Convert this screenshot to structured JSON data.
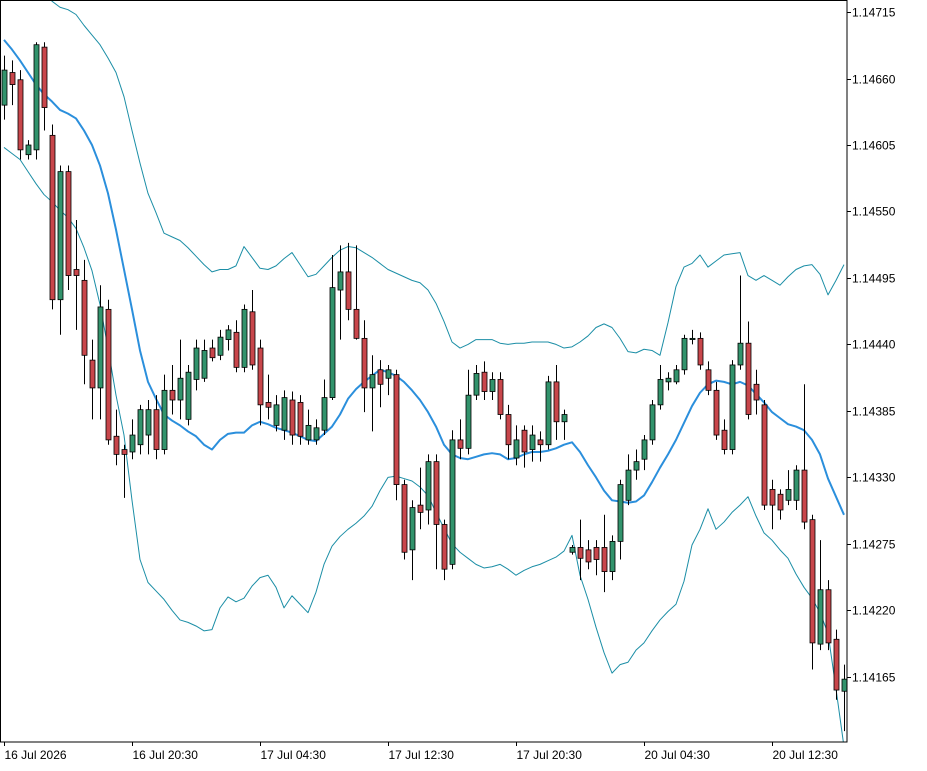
{
  "chart_data": {
    "type": "candlestick",
    "categories": [
      "16 Jul 2026",
      null,
      null,
      null,
      null,
      null,
      null,
      null,
      null,
      null,
      null,
      null,
      null,
      null,
      null,
      null,
      "16 Jul 20:30",
      null,
      null,
      null,
      null,
      null,
      null,
      null,
      null,
      null,
      null,
      null,
      null,
      null,
      null,
      null,
      "17 Jul 04:30",
      null,
      null,
      null,
      null,
      null,
      null,
      null,
      null,
      null,
      null,
      null,
      null,
      null,
      null,
      null,
      "17 Jul 12:30",
      null,
      null,
      null,
      null,
      null,
      null,
      null,
      null,
      null,
      null,
      null,
      null,
      null,
      null,
      null,
      "17 Jul 20:30",
      null,
      null,
      null,
      null,
      null,
      null,
      null,
      null,
      null,
      null,
      null,
      null,
      null,
      null,
      null,
      "20 Jul 04:30",
      null,
      null,
      null,
      null,
      null,
      null,
      null,
      null,
      null,
      null,
      null,
      null,
      null,
      null,
      null,
      "20 Jul 12:30",
      null,
      null,
      null,
      null,
      null,
      null,
      null,
      null,
      null
    ],
    "open": [
      1.14638,
      1.14665,
      1.14659,
      1.14597,
      1.14601,
      1.14686,
      1.14613,
      1.14477,
      1.14583,
      1.14502,
      1.14493,
      1.14427,
      1.14404,
      1.14469,
      1.14364,
      1.14353,
      1.14351,
      1.14357,
      1.14365,
      1.14386,
      1.14353,
      1.14402,
      1.14394,
      1.14378,
      1.14411,
      1.14412,
      1.14437,
      1.14431,
      1.14444,
      1.1445,
      1.14421,
      1.14467,
      1.14437,
      1.14392,
      1.14373,
      1.14369,
      1.14394,
      1.14392,
      1.14361,
      1.14361,
      1.14369,
      1.14396,
      1.14485,
      1.145,
      1.14469,
      1.14445,
      1.14404,
      1.14419,
      1.14412,
      1.14415,
      1.14324,
      1.1427,
      1.14307,
      1.14303,
      1.14343,
      1.14291,
      1.14258,
      1.14361,
      1.14354,
      1.14398,
      1.14417,
      1.14401,
      1.14411,
      1.14382,
      1.14346,
      1.14369,
      1.14353,
      1.14361,
      1.14357,
      1.14409,
      1.14376,
      1.14268,
      1.14272,
      1.1427,
      1.14272,
      1.14272,
      1.14252,
      1.14277,
      1.14311,
      1.14336,
      1.14345,
      1.14361,
      1.1439,
      1.14409,
      1.14409,
      1.14419,
      1.14444,
      1.14445,
      1.14419,
      1.14402,
      1.14369,
      1.14353,
      1.14423,
      1.14441,
      1.14407,
      1.1439,
      1.1432,
      1.14316,
      1.14311,
      1.14311,
      1.14336,
      1.14295,
      1.14192,
      1.14237,
      1.14196,
      1.14153
    ],
    "high": [
      1.14679,
      1.14675,
      1.14667,
      1.14609,
      1.1469,
      1.1469,
      1.14622,
      1.14588,
      1.14588,
      1.14543,
      1.1451,
      1.14444,
      1.14489,
      1.14477,
      1.14386,
      1.14357,
      1.14378,
      1.1439,
      1.14394,
      1.14398,
      1.14415,
      1.14423,
      1.14444,
      1.14423,
      1.14444,
      1.14444,
      1.14444,
      1.14452,
      1.14456,
      1.1446,
      1.14473,
      1.14485,
      1.14444,
      1.14415,
      1.14398,
      1.14402,
      1.14401,
      1.14398,
      1.14386,
      1.14378,
      1.14411,
      1.14514,
      1.14522,
      1.14524,
      1.14522,
      1.1446,
      1.14431,
      1.14427,
      1.14423,
      1.14419,
      1.14328,
      1.14311,
      1.14338,
      1.14349,
      1.14349,
      1.14295,
      1.14369,
      1.14378,
      1.14419,
      1.14423,
      1.14426,
      1.14417,
      1.14417,
      1.1439,
      1.14373,
      1.14373,
      1.14373,
      1.14368,
      1.14414,
      1.14423,
      1.14386,
      1.14274,
      1.14295,
      1.14278,
      1.14278,
      1.14299,
      1.14282,
      1.14328,
      1.14349,
      1.14353,
      1.14365,
      1.14394,
      1.14423,
      1.14417,
      1.14423,
      1.14448,
      1.14452,
      1.1445,
      1.14426,
      1.14409,
      1.14378,
      1.14427,
      1.14497,
      1.14459,
      1.14419,
      1.14394,
      1.14328,
      1.1432,
      1.14336,
      1.1434,
      1.14407,
      1.14299,
      1.14278,
      1.14245,
      1.14204,
      1.14175
    ],
    "low": [
      1.14626,
      1.14638,
      1.14593,
      1.14593,
      1.14593,
      1.14617,
      1.14469,
      1.14448,
      1.14485,
      1.14452,
      1.14407,
      1.14378,
      1.14378,
      1.14357,
      1.1434,
      1.14313,
      1.14345,
      1.14349,
      1.14349,
      1.14345,
      1.14349,
      1.14382,
      1.14378,
      1.14373,
      1.14402,
      1.14409,
      1.14426,
      1.14427,
      1.14435,
      1.14417,
      1.14417,
      1.14419,
      1.14373,
      1.14378,
      1.14368,
      1.14361,
      1.14357,
      1.14357,
      1.14357,
      1.14357,
      1.14365,
      1.14394,
      1.14444,
      1.1446,
      1.14444,
      1.14384,
      1.14368,
      1.14388,
      1.14398,
      1.14311,
      1.14262,
      1.14245,
      1.14287,
      1.14291,
      1.14254,
      1.14245,
      1.14254,
      1.14345,
      1.14349,
      1.14394,
      1.14394,
      1.14394,
      1.14378,
      1.14345,
      1.1434,
      1.14338,
      1.14343,
      1.14343,
      1.14353,
      1.14361,
      1.14361,
      1.14266,
      1.14245,
      1.14254,
      1.14249,
      1.14235,
      1.14245,
      1.14262,
      1.14307,
      1.14328,
      1.14336,
      1.14357,
      1.14386,
      1.14402,
      1.14407,
      1.14415,
      1.1444,
      1.14419,
      1.14398,
      1.14361,
      1.14349,
      1.14349,
      1.14419,
      1.14378,
      1.14382,
      1.14303,
      1.14287,
      1.14295,
      1.14307,
      1.14303,
      1.14287,
      1.14171,
      1.14187,
      1.14187,
      1.14146,
      1.1412
    ],
    "close": [
      1.14667,
      1.14655,
      1.14601,
      1.14605,
      1.14688,
      1.14636,
      1.14477,
      1.14583,
      1.14497,
      1.14497,
      1.14431,
      1.14404,
      1.14471,
      1.14361,
      1.14349,
      1.14349,
      1.14365,
      1.14386,
      1.14386,
      1.14353,
      1.14402,
      1.14394,
      1.14412,
      1.14417,
      1.14437,
      1.14435,
      1.14429,
      1.14446,
      1.14452,
      1.14421,
      1.14469,
      1.14423,
      1.1439,
      1.14388,
      1.1439,
      1.14396,
      1.14365,
      1.14364,
      1.14373,
      1.14371,
      1.14396,
      1.14487,
      1.145,
      1.14469,
      1.14445,
      1.14404,
      1.14415,
      1.14407,
      1.14419,
      1.14324,
      1.14268,
      1.14305,
      1.14301,
      1.14343,
      1.14291,
      1.14254,
      1.14361,
      1.14354,
      1.14398,
      1.14416,
      1.14401,
      1.14411,
      1.14382,
      1.14357,
      1.14361,
      1.14351,
      1.14365,
      1.14357,
      1.14409,
      1.14376,
      1.14382,
      1.14272,
      1.14263,
      1.1426,
      1.14262,
      1.14252,
      1.14277,
      1.14324,
      1.14336,
      1.14343,
      1.14361,
      1.1439,
      1.14411,
      1.14412,
      1.14419,
      1.14445,
      1.14445,
      1.14423,
      1.14402,
      1.14365,
      1.14353,
      1.14423,
      1.14441,
      1.14382,
      1.14394,
      1.14307,
      1.14307,
      1.14303,
      1.1432,
      1.14336,
      1.14293,
      1.14193,
      1.14237,
      1.14193,
      1.14154,
      1.14163
    ],
    "up_color": "#32936c",
    "down_color": "#c8464b",
    "bands": [
      {
        "color": "#1b8ea6",
        "values": [
          1.1477,
          1.14766,
          1.14758,
          1.14749,
          1.14746,
          1.14733,
          1.14724,
          1.14719,
          1.14717,
          1.14713,
          1.14704,
          1.14696,
          1.14688,
          1.14677,
          1.14665,
          1.14645,
          1.14617,
          1.1459,
          1.14565,
          1.14549,
          1.14532,
          1.14529,
          1.14526,
          1.1452,
          1.14513,
          1.14506,
          1.145,
          1.14502,
          1.14502,
          1.14505,
          1.14521,
          1.14512,
          1.14503,
          1.14502,
          1.14505,
          1.14511,
          1.14516,
          1.14506,
          1.14496,
          1.14498,
          1.14505,
          1.14512,
          1.14518,
          1.14521,
          1.1452,
          1.14516,
          1.14512,
          1.14507,
          1.14502,
          1.14499,
          1.14496,
          1.14493,
          1.14491,
          1.14485,
          1.14474,
          1.14459,
          1.14442,
          1.14437,
          1.1444,
          1.14444,
          1.14444,
          1.14444,
          1.14441,
          1.1444,
          1.14441,
          1.14441,
          1.14442,
          1.14442,
          1.14442,
          1.1444,
          1.14437,
          1.14438,
          1.14442,
          1.14447,
          1.14454,
          1.14457,
          1.14454,
          1.14445,
          1.14434,
          1.14433,
          1.14436,
          1.14435,
          1.14431,
          1.14458,
          1.14488,
          1.14504,
          1.14507,
          1.14514,
          1.14504,
          1.14509,
          1.14514,
          1.14515,
          1.14516,
          1.14497,
          1.14493,
          1.14497,
          1.14493,
          1.14489,
          1.14496,
          1.14502,
          1.14505,
          1.14506,
          1.14498,
          1.14481,
          1.14493,
          1.14506
        ]
      },
      {
        "color": "#2b8fdc",
        "values": [
          1.14692,
          1.14684,
          1.14675,
          1.14665,
          1.14655,
          1.14647,
          1.14641,
          1.14634,
          1.14631,
          1.14627,
          1.14617,
          1.14605,
          1.14588,
          1.14565,
          1.14535,
          1.14502,
          1.14469,
          1.14435,
          1.14409,
          1.14395,
          1.14382,
          1.14377,
          1.14373,
          1.14368,
          1.14364,
          1.14357,
          1.14353,
          1.14361,
          1.14366,
          1.14367,
          1.14367,
          1.14373,
          1.14376,
          1.14374,
          1.14371,
          1.14369,
          1.14367,
          1.14364,
          1.14361,
          1.1436,
          1.14366,
          1.14372,
          1.14382,
          1.14395,
          1.14403,
          1.14409,
          1.14414,
          1.14419,
          1.14417,
          1.14414,
          1.14409,
          1.14402,
          1.14394,
          1.14384,
          1.14372,
          1.14357,
          1.14349,
          1.14346,
          1.14345,
          1.14347,
          1.14349,
          1.1435,
          1.14349,
          1.14345,
          1.14346,
          1.14349,
          1.14351,
          1.14351,
          1.14352,
          1.14354,
          1.14357,
          1.14359,
          1.14351,
          1.1434,
          1.1433,
          1.14319,
          1.14311,
          1.1431,
          1.14309,
          1.1431,
          1.14315,
          1.14326,
          1.14338,
          1.14349,
          1.14361,
          1.14375,
          1.14389,
          1.144,
          1.14407,
          1.1441,
          1.14409,
          1.14407,
          1.14409,
          1.14406,
          1.14399,
          1.14392,
          1.14384,
          1.14379,
          1.14374,
          1.14372,
          1.14369,
          1.14361,
          1.14349,
          1.14329,
          1.14314,
          1.14299
        ]
      },
      {
        "color": "#1b8ea6",
        "values": [
          1.14603,
          1.14598,
          1.14593,
          1.14583,
          1.14573,
          1.14564,
          1.14558,
          1.14551,
          1.14545,
          1.14536,
          1.1452,
          1.14501,
          1.14473,
          1.14437,
          1.14398,
          1.14365,
          1.14311,
          1.14262,
          1.14243,
          1.14236,
          1.14229,
          1.1422,
          1.14212,
          1.1421,
          1.14207,
          1.14203,
          1.14204,
          1.14222,
          1.14231,
          1.14227,
          1.1423,
          1.1424,
          1.14247,
          1.14249,
          1.14239,
          1.14222,
          1.14232,
          1.14225,
          1.14218,
          1.14235,
          1.14258,
          1.14273,
          1.14281,
          1.14287,
          1.14292,
          1.14298,
          1.14306,
          1.14319,
          1.1433,
          1.14331,
          1.14329,
          1.14327,
          1.14322,
          1.14315,
          1.14301,
          1.14288,
          1.14275,
          1.14268,
          1.14263,
          1.14258,
          1.14255,
          1.14256,
          1.14258,
          1.14254,
          1.14249,
          1.14253,
          1.14256,
          1.14258,
          1.14261,
          1.14264,
          1.14269,
          1.14282,
          1.14249,
          1.14229,
          1.14206,
          1.14185,
          1.14168,
          1.14175,
          1.14177,
          1.14187,
          1.14193,
          1.14203,
          1.14212,
          1.14219,
          1.14225,
          1.14244,
          1.14274,
          1.14287,
          1.14304,
          1.14287,
          1.14293,
          1.14301,
          1.14307,
          1.14314,
          1.14298,
          1.14284,
          1.14278,
          1.1427,
          1.14263,
          1.1425,
          1.14239,
          1.1423,
          1.14218,
          1.14201,
          1.14155,
          1.14107
        ]
      }
    ],
    "ylim": [
      1.14111,
      1.14725
    ],
    "yticks": [
      1.14715,
      {
        "value": 1.1466,
        "label": "1.14660"
      },
      1.14605,
      {
        "value": 1.1455,
        "label": "1.14550"
      },
      1.14495,
      {
        "value": 1.1444,
        "label": "1.14440"
      },
      1.14385,
      {
        "value": 1.1433,
        "label": "1.14330"
      },
      1.14275,
      {
        "value": 1.1422,
        "label": "1.14220"
      },
      1.14165
    ],
    "grid": false
  }
}
